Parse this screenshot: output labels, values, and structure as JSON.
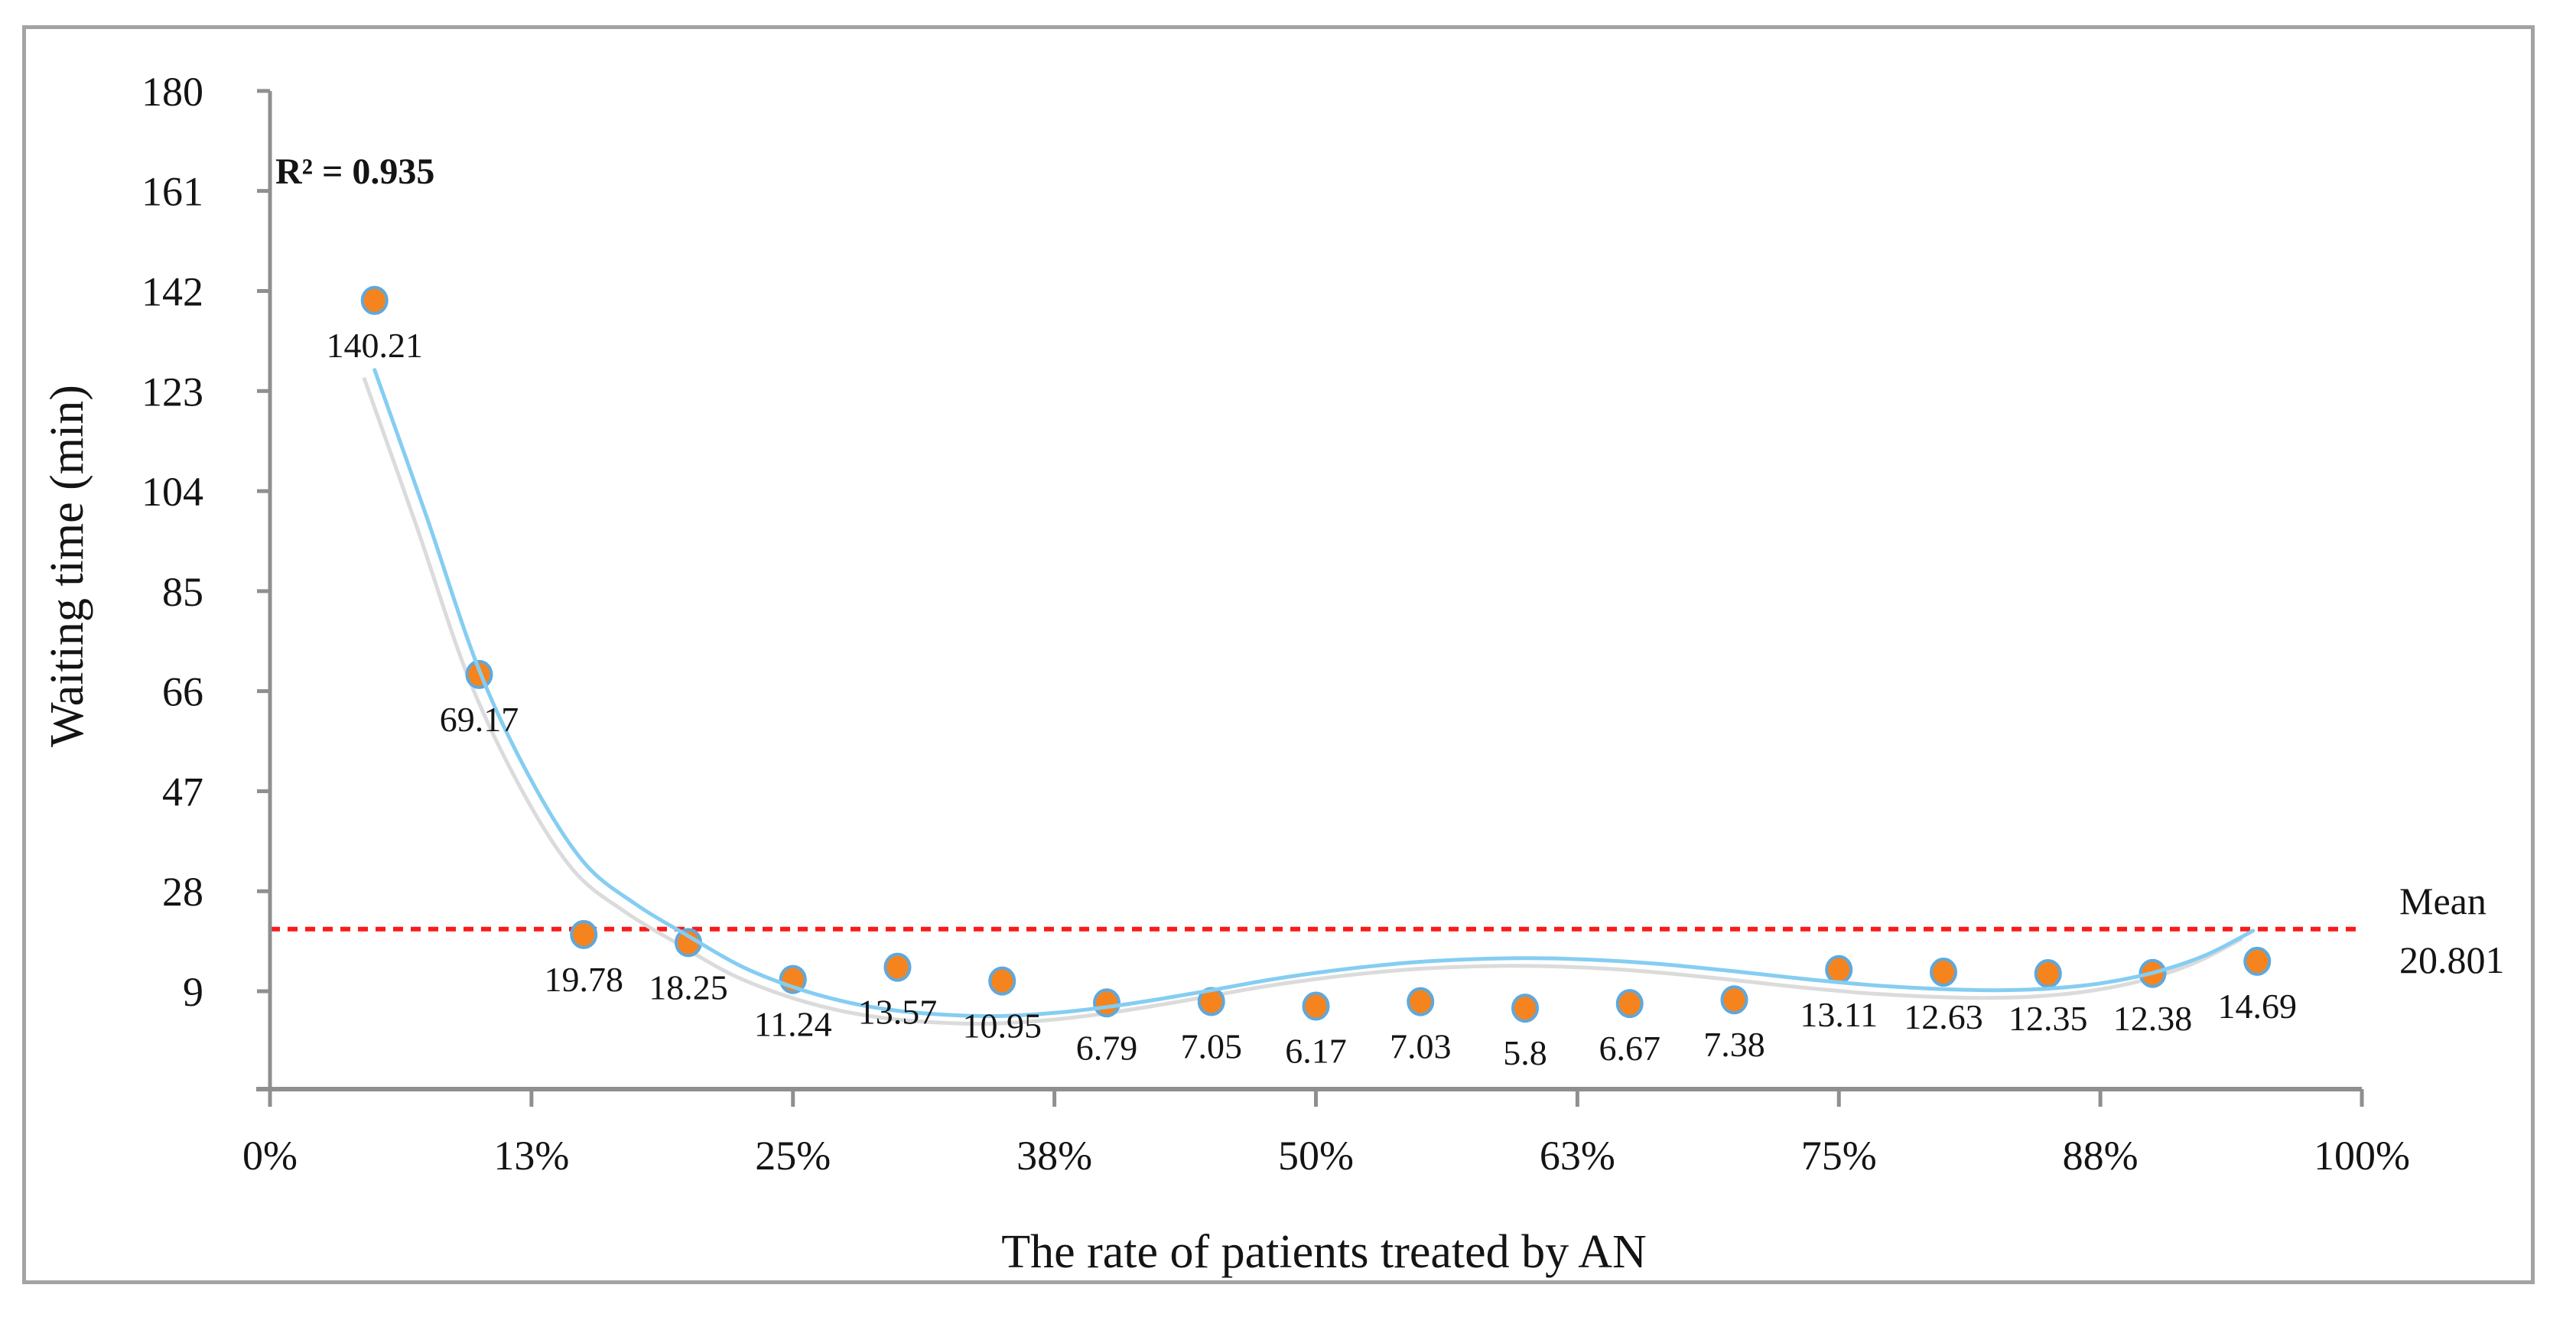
{
  "chart_data": {
    "type": "scatter",
    "title": "",
    "xlabel": "The rate of patients treated by AN",
    "ylabel": "Waiting time (min)",
    "r2_label": "R² = 0.935",
    "r2": 0.935,
    "mean_label": "Mean",
    "mean_value_label": "20.801",
    "mean": 20.801,
    "x_percent": [
      5,
      10,
      15,
      20,
      25,
      30,
      35,
      40,
      45,
      50,
      55,
      60,
      65,
      70,
      75,
      80,
      85,
      90,
      95
    ],
    "values": [
      140.21,
      69.17,
      19.78,
      18.25,
      11.24,
      13.57,
      10.95,
      6.79,
      7.05,
      6.17,
      7.03,
      5.8,
      6.67,
      7.38,
      13.11,
      12.63,
      12.35,
      12.38,
      14.69
    ],
    "point_labels": [
      "140.21",
      "69.17",
      "19.78",
      "18.25",
      "11.24",
      "13.57",
      "10.95",
      "6.79",
      "7.05",
      "6.17",
      "7.03",
      "5.8",
      "6.67",
      "7.38",
      "13.11",
      "12.63",
      "12.35",
      "12.38",
      "14.69"
    ],
    "y_ticks": [
      180,
      161,
      142,
      123,
      104,
      85,
      66,
      47,
      28,
      9
    ],
    "x_ticks": [
      {
        "pct": 0,
        "label": "0%"
      },
      {
        "pct": 12.5,
        "label": "13%"
      },
      {
        "pct": 25,
        "label": "25%"
      },
      {
        "pct": 37.5,
        "label": "38%"
      },
      {
        "pct": 50,
        "label": "50%"
      },
      {
        "pct": 62.5,
        "label": "63%"
      },
      {
        "pct": 75,
        "label": "75%"
      },
      {
        "pct": 87.5,
        "label": "88%"
      },
      {
        "pct": 100,
        "label": "100%"
      }
    ],
    "ylim": [
      -9.6,
      180
    ],
    "xlim_percent": [
      0,
      100
    ],
    "grid": false,
    "legend": "none",
    "trendline": {
      "style": "smooth-polynomial",
      "samples": [
        [
          5,
          127
        ],
        [
          7.5,
          99
        ],
        [
          10,
          70
        ],
        [
          12.5,
          49
        ],
        [
          15,
          33.5
        ],
        [
          17.5,
          25.5
        ],
        [
          20,
          19.5
        ],
        [
          22.5,
          13.8
        ],
        [
          25,
          9.8
        ],
        [
          27.5,
          7.0
        ],
        [
          30,
          5.3
        ],
        [
          32.5,
          4.5
        ],
        [
          35,
          4.3
        ],
        [
          37.5,
          4.9
        ],
        [
          40,
          6.0
        ],
        [
          42.5,
          7.5
        ],
        [
          45,
          9.2
        ],
        [
          47.5,
          11.0
        ],
        [
          50,
          12.5
        ],
        [
          52.5,
          13.7
        ],
        [
          55,
          14.6
        ],
        [
          57.5,
          15.1
        ],
        [
          60,
          15.3
        ],
        [
          62.5,
          15.1
        ],
        [
          65,
          14.6
        ],
        [
          67.5,
          13.8
        ],
        [
          70,
          12.8
        ],
        [
          72.5,
          11.7
        ],
        [
          75,
          10.7
        ],
        [
          77.5,
          9.9
        ],
        [
          80,
          9.4
        ],
        [
          82.5,
          9.2
        ],
        [
          85,
          9.5
        ],
        [
          87.5,
          10.5
        ],
        [
          90,
          12.5
        ],
        [
          92.5,
          15.8
        ],
        [
          94.8,
          20.5
        ]
      ]
    },
    "colors": {
      "marker_fill": "#F5841E",
      "marker_stroke": "#5FA8DC",
      "trend": "#85CDF2",
      "trend_shadow": "#DBDBDB",
      "mean_line": "#FB1A1A",
      "r2_text": "#FA0F0F",
      "axis": "#8F8F8F",
      "text": "#141414",
      "border": "#A3A3A3"
    }
  }
}
